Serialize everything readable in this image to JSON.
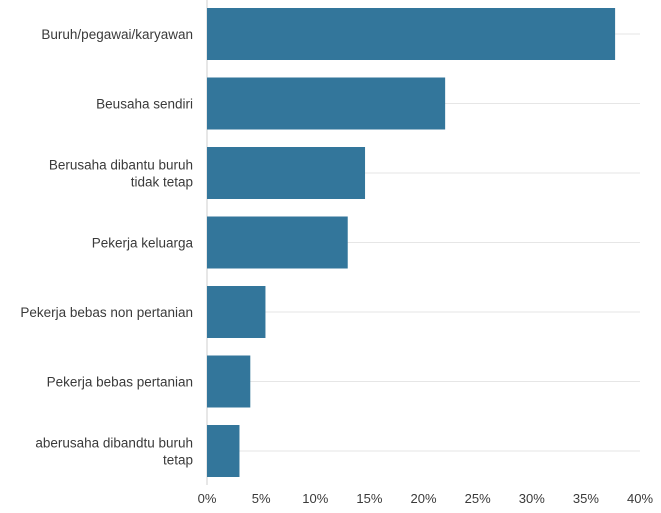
{
  "chart_data": {
    "type": "bar",
    "orientation": "horizontal",
    "categories": [
      [
        "Buruh/pegawai/karyawan"
      ],
      [
        "Beusaha sendiri"
      ],
      [
        "Berusaha dibantu buruh",
        "tidak tetap"
      ],
      [
        "Pekerja keluarga"
      ],
      [
        "Pekerja bebas non pertanian"
      ],
      [
        "Pekerja bebas pertanian"
      ],
      [
        "aberusaha dibandtu buruh",
        "tetap"
      ]
    ],
    "values": [
      37.7,
      22.0,
      14.6,
      13.0,
      5.4,
      4.0,
      3.0
    ],
    "unit": "%",
    "xlim": [
      0,
      40
    ],
    "xticks": [
      0,
      5,
      10,
      15,
      20,
      25,
      30,
      35,
      40
    ],
    "xtick_labels": [
      "0%",
      "5%",
      "10%",
      "15%",
      "20%",
      "25%",
      "30%",
      "35%",
      "40%"
    ],
    "title": "",
    "xlabel": "",
    "ylabel": "",
    "grid": true,
    "bar_color": "#33769b"
  }
}
